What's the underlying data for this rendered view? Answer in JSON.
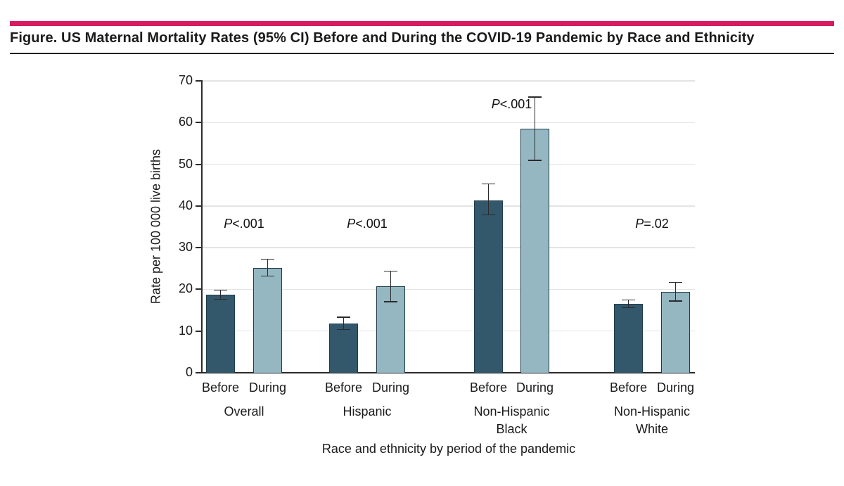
{
  "header": {
    "title": "Figure. US Maternal Mortality Rates (95% CI) Before and During the COVID-19 Pandemic by Race and Ethnicity"
  },
  "colors": {
    "accent_rule": "#D81B60",
    "title_divider": "#1F1F1F",
    "bar_before": "#33586B",
    "bar_during": "#95B7C2",
    "bar_outline": "#203D4C",
    "gridline": "#E4E4E4",
    "axis": "#2B2B2B",
    "text": "#1A1A1A"
  },
  "chart_data": {
    "type": "bar",
    "title": "US Maternal Mortality Rates (95% CI) Before and During the COVID-19 Pandemic by Race and Ethnicity",
    "ylabel": "Rate per 100 000 live births",
    "xlabel": "Race and ethnicity by period of the pandemic",
    "ylim": [
      0,
      70
    ],
    "yticks": [
      0,
      10,
      20,
      30,
      40,
      50,
      60,
      70
    ],
    "grid": "horizontal",
    "legend": "none",
    "bar_periods": [
      "Before",
      "During"
    ],
    "error_bars": "95% CI",
    "groups": [
      {
        "label": "Overall",
        "label_lines": [
          "Overall"
        ],
        "p_value": "P<.001",
        "bars": [
          {
            "period": "Before",
            "value": 18.8,
            "ci_low": 17.6,
            "ci_high": 19.8
          },
          {
            "period": "During",
            "value": 25.1,
            "ci_low": 23.2,
            "ci_high": 27.2
          }
        ]
      },
      {
        "label": "Hispanic",
        "label_lines": [
          "Hispanic"
        ],
        "p_value": "P<.001",
        "bars": [
          {
            "period": "Before",
            "value": 11.8,
            "ci_low": 10.4,
            "ci_high": 13.3
          },
          {
            "period": "During",
            "value": 20.7,
            "ci_low": 17.0,
            "ci_high": 24.4
          }
        ]
      },
      {
        "label": "Non-Hispanic Black",
        "label_lines": [
          "Non-Hispanic",
          "Black"
        ],
        "p_value": "P<.001",
        "bars": [
          {
            "period": "Before",
            "value": 41.4,
            "ci_low": 37.9,
            "ci_high": 45.3
          },
          {
            "period": "During",
            "value": 58.5,
            "ci_low": 50.9,
            "ci_high": 66.1
          }
        ]
      },
      {
        "label": "Non-Hispanic White",
        "label_lines": [
          "Non-Hispanic",
          "White"
        ],
        "p_value": "P=.02",
        "bars": [
          {
            "period": "Before",
            "value": 16.5,
            "ci_low": 15.6,
            "ci_high": 17.5
          },
          {
            "period": "During",
            "value": 19.4,
            "ci_low": 17.2,
            "ci_high": 21.7
          }
        ]
      }
    ]
  }
}
